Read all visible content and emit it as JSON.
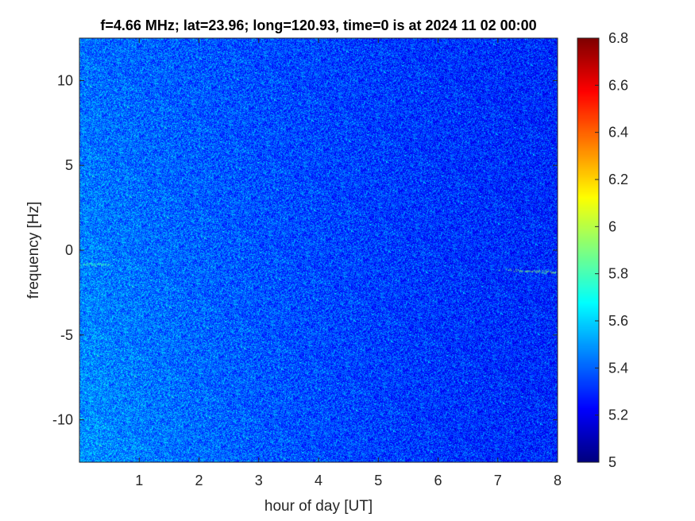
{
  "chart_data": {
    "type": "heatmap",
    "title": "f=4.66 MHz;  lat=23.96; long=120.93, time=0 is at 2024 11 02 00:00",
    "xlabel": "hour of day [UT]",
    "ylabel": "frequency [Hz]",
    "xlim": [
      0,
      8
    ],
    "ylim": [
      -12.5,
      12.5
    ],
    "xticks": [
      1,
      2,
      3,
      4,
      5,
      6,
      7,
      8
    ],
    "xtick_labels": [
      "1",
      "2",
      "3",
      "4",
      "5",
      "6",
      "7",
      "8"
    ],
    "yticks": [
      10,
      5,
      0,
      -5,
      -10
    ],
    "ytick_labels": [
      "10",
      "5",
      "0",
      "-5",
      "-10"
    ],
    "colormap": "jet",
    "clim": [
      5,
      6.8
    ],
    "colorbar_ticks": [
      6.8,
      6.6,
      6.4,
      6.2,
      6,
      5.8,
      5.6,
      5.4,
      5.2,
      5
    ],
    "colorbar_tick_labels": [
      "6.8",
      "6.6",
      "6.4",
      "6.2",
      "6",
      "5.8",
      "5.6",
      "5.4",
      "5.2",
      "5"
    ],
    "background_level": 5.35,
    "features": [
      {
        "x": [
          0.0,
          0.5
        ],
        "y": [
          -0.8,
          -0.8
        ],
        "value": 5.8
      },
      {
        "x": [
          7.0,
          8.0
        ],
        "y": [
          -1.1,
          -1.3
        ],
        "value": 5.9
      }
    ],
    "grid": false
  }
}
